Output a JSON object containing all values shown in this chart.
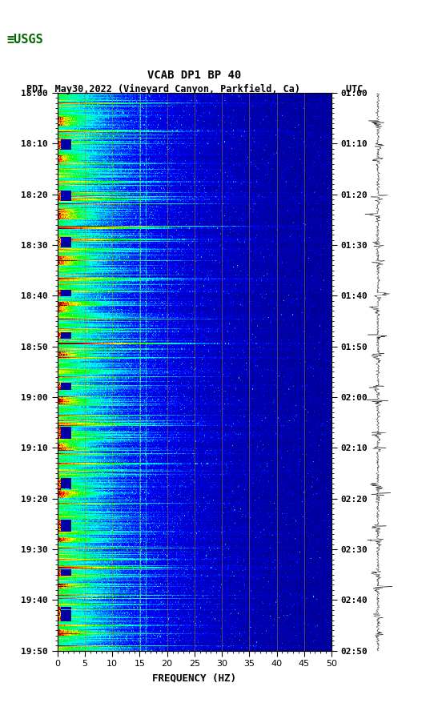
{
  "title_line1": "VCAB DP1 BP 40",
  "title_line2": "PDT  May30,2022 (Vineyard Canyon, Parkfield, Ca)        UTC",
  "xlabel": "FREQUENCY (HZ)",
  "freq_min": 0,
  "freq_max": 50,
  "time_start_pdt": "18:00",
  "time_end_pdt": "19:50",
  "time_start_utc": "01:00",
  "time_end_utc": "02:50",
  "left_tick_labels": [
    "18:00",
    "18:10",
    "18:20",
    "18:30",
    "18:40",
    "18:50",
    "19:00",
    "19:10",
    "19:20",
    "19:30",
    "19:40",
    "19:50"
  ],
  "right_tick_labels": [
    "01:00",
    "01:10",
    "01:20",
    "01:30",
    "01:40",
    "01:50",
    "02:00",
    "02:10",
    "02:20",
    "02:30",
    "02:40",
    "02:50"
  ],
  "freq_ticks": [
    0,
    5,
    10,
    15,
    20,
    25,
    30,
    35,
    40,
    45,
    50
  ],
  "vertical_lines_freq": [
    5,
    10,
    15,
    20,
    25,
    30,
    35,
    40,
    45
  ],
  "bg_color": "#ffffff",
  "spectrogram_bg": "#000080",
  "usgs_green": "#006600",
  "font_family": "monospace",
  "seed": 42,
  "n_time": 600,
  "n_freq": 400
}
